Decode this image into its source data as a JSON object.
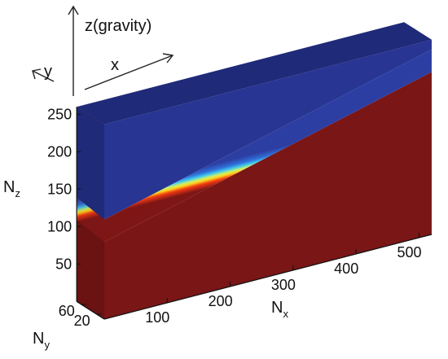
{
  "chart_data": {
    "type": "3d-volume-slice",
    "colormap": "jet",
    "colorbar": false,
    "z_axis": {
      "label_main": "N",
      "label_sub": "z",
      "ticks": [
        "50",
        "100",
        "150",
        "200",
        "250"
      ],
      "tick_values": [
        50,
        100,
        150,
        200,
        250
      ],
      "range": [
        0,
        260
      ]
    },
    "x_axis": {
      "label_main": "N",
      "label_sub": "x",
      "ticks": [
        "100",
        "200",
        "300",
        "400",
        "500"
      ],
      "tick_values": [
        100,
        200,
        300,
        400,
        500
      ],
      "range": [
        0,
        520
      ]
    },
    "y_axis": {
      "label_main": "N",
      "label_sub": "y",
      "ticks": [
        "20",
        "60"
      ],
      "tick_values": [
        20,
        60
      ],
      "range": [
        0,
        72
      ]
    },
    "orientation": {
      "z_label": "z(gravity)",
      "x_label": "x",
      "y_label": "y"
    },
    "interface": {
      "description_values": "sloped transition from low values (top) to high values (bottom)",
      "z_at_x_min": 118,
      "z_at_x_max": 232,
      "transition_width_z": 30
    },
    "colors": {
      "top": "#283593",
      "top_dark": "#1f2a78",
      "bottom": "#7a1616",
      "bottom_dark": "#6b1212"
    }
  }
}
